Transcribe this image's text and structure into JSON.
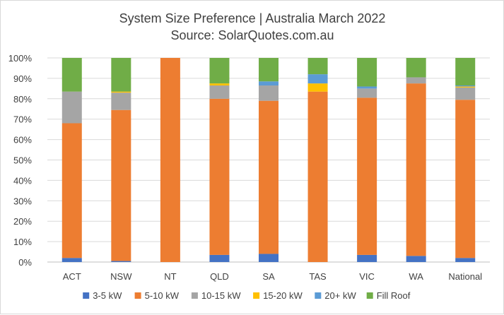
{
  "chart_data": {
    "type": "bar",
    "stacked": true,
    "title_line1": "System Size Preference  | Australia March 2022",
    "title_line2": "Source: SolarQuotes.com.au",
    "categories": [
      "ACT",
      "NSW",
      "NT",
      "QLD",
      "SA",
      "TAS",
      "VIC",
      "WA",
      "National"
    ],
    "ylim": [
      0,
      100
    ],
    "yticks": [
      "0%",
      "10%",
      "20%",
      "30%",
      "40%",
      "50%",
      "60%",
      "70%",
      "80%",
      "90%",
      "100%"
    ],
    "grid": true,
    "legend_position": "bottom",
    "series": [
      {
        "name": "3-5 kW",
        "color": "#4472c4",
        "values": [
          2,
          0.5,
          0,
          3.5,
          4,
          0,
          3.5,
          3,
          2
        ]
      },
      {
        "name": "5-10 kW",
        "color": "#ed7d31",
        "values": [
          66,
          74,
          100,
          76.5,
          75,
          83.5,
          77,
          84.5,
          77.5
        ]
      },
      {
        "name": "10-15 kW",
        "color": "#a5a5a5",
        "values": [
          15.5,
          8.5,
          0,
          6.5,
          7.5,
          0,
          4.5,
          3,
          6
        ]
      },
      {
        "name": "15-20 kW",
        "color": "#ffc000",
        "values": [
          0,
          0.5,
          0,
          1,
          0,
          4,
          0,
          0,
          0.5
        ]
      },
      {
        "name": "20+ kW",
        "color": "#5b9bd5",
        "values": [
          0,
          0,
          0,
          0,
          2,
          4.5,
          1,
          0,
          0.5
        ]
      },
      {
        "name": "Fill Roof",
        "color": "#70ad47",
        "values": [
          16.5,
          16.5,
          0,
          12.5,
          11.5,
          8,
          14,
          9.5,
          13.5
        ]
      }
    ]
  }
}
